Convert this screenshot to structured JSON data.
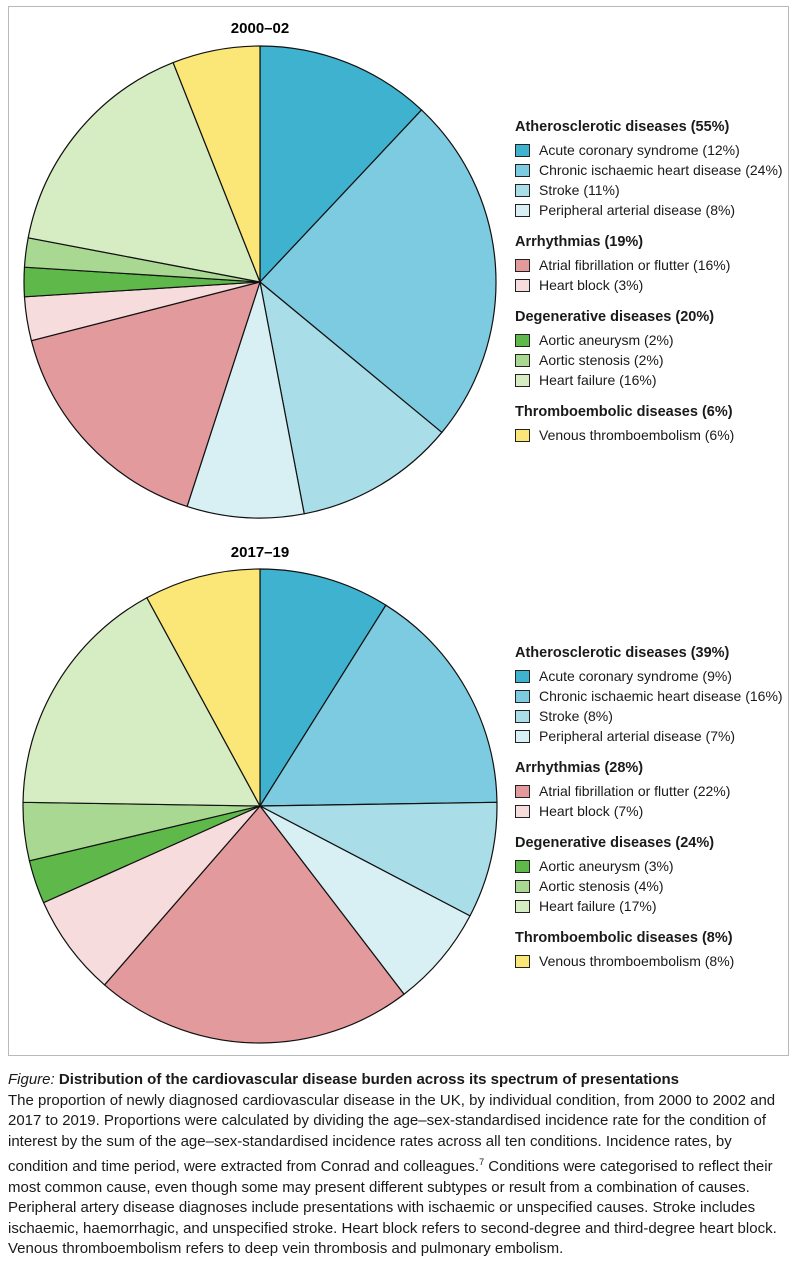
{
  "chart_data": [
    {
      "type": "pie",
      "title": "2000–02",
      "slices": [
        {
          "label": "Acute coronary syndrome",
          "value": 12,
          "color": "#3fb2cf"
        },
        {
          "label": "Chronic ischaemic heart disease",
          "value": 24,
          "color": "#7dcbe0"
        },
        {
          "label": "Stroke",
          "value": 11,
          "color": "#a9dde8"
        },
        {
          "label": "Peripheral arterial disease",
          "value": 8,
          "color": "#d8eff4"
        },
        {
          "label": "Atrial fibrillation or flutter",
          "value": 16,
          "color": "#e39a9c"
        },
        {
          "label": "Heart block",
          "value": 3,
          "color": "#f6dcdc"
        },
        {
          "label": "Aortic aneurysm",
          "value": 2,
          "color": "#5eb84a"
        },
        {
          "label": "Aortic stenosis",
          "value": 2,
          "color": "#a8d891"
        },
        {
          "label": "Heart failure",
          "value": 16,
          "color": "#d6ecc2"
        },
        {
          "label": "Venous thromboembolism",
          "value": 6,
          "color": "#fbe777"
        }
      ],
      "groups": [
        {
          "title": "Atherosclerotic diseases (55%)",
          "items": [
            {
              "text": "Acute coronary syndrome (12%)",
              "color": "#3fb2cf"
            },
            {
              "text": "Chronic ischaemic heart disease (24%)",
              "color": "#7dcbe0"
            },
            {
              "text": "Stroke (11%)",
              "color": "#a9dde8"
            },
            {
              "text": "Peripheral arterial disease (8%)",
              "color": "#d8eff4"
            }
          ]
        },
        {
          "title": "Arrhythmias (19%)",
          "items": [
            {
              "text": "Atrial fibrillation or flutter (16%)",
              "color": "#e39a9c"
            },
            {
              "text": "Heart block (3%)",
              "color": "#f6dcdc"
            }
          ]
        },
        {
          "title": "Degenerative diseases (20%)",
          "items": [
            {
              "text": "Aortic aneurysm (2%)",
              "color": "#5eb84a"
            },
            {
              "text": "Aortic stenosis (2%)",
              "color": "#a8d891"
            },
            {
              "text": "Heart failure (16%)",
              "color": "#d6ecc2"
            }
          ]
        },
        {
          "title": "Thromboembolic diseases (6%)",
          "items": [
            {
              "text": "Venous thromboembolism (6%)",
              "color": "#fbe777"
            }
          ]
        }
      ]
    },
    {
      "type": "pie",
      "title": "2017–19",
      "slices": [
        {
          "label": "Acute coronary syndrome",
          "value": 9,
          "color": "#3fb2cf"
        },
        {
          "label": "Chronic ischaemic heart disease",
          "value": 16,
          "color": "#7dcbe0"
        },
        {
          "label": "Stroke",
          "value": 8,
          "color": "#a9dde8"
        },
        {
          "label": "Peripheral arterial disease",
          "value": 7,
          "color": "#d8eff4"
        },
        {
          "label": "Atrial fibrillation or flutter",
          "value": 22,
          "color": "#e39a9c"
        },
        {
          "label": "Heart block",
          "value": 7,
          "color": "#f6dcdc"
        },
        {
          "label": "Aortic aneurysm",
          "value": 3,
          "color": "#5eb84a"
        },
        {
          "label": "Aortic stenosis",
          "value": 4,
          "color": "#a8d891"
        },
        {
          "label": "Heart failure",
          "value": 17,
          "color": "#d6ecc2"
        },
        {
          "label": "Venous thromboembolism",
          "value": 8,
          "color": "#fbe777"
        }
      ],
      "groups": [
        {
          "title": "Atherosclerotic diseases (39%)",
          "items": [
            {
              "text": "Acute coronary syndrome (9%)",
              "color": "#3fb2cf"
            },
            {
              "text": "Chronic ischaemic heart disease (16%)",
              "color": "#7dcbe0"
            },
            {
              "text": "Stroke (8%)",
              "color": "#a9dde8"
            },
            {
              "text": "Peripheral arterial disease (7%)",
              "color": "#d8eff4"
            }
          ]
        },
        {
          "title": "Arrhythmias (28%)",
          "items": [
            {
              "text": "Atrial fibrillation or flutter (22%)",
              "color": "#e39a9c"
            },
            {
              "text": "Heart block (7%)",
              "color": "#f6dcdc"
            }
          ]
        },
        {
          "title": "Degenerative diseases (24%)",
          "items": [
            {
              "text": "Aortic aneurysm (3%)",
              "color": "#5eb84a"
            },
            {
              "text": "Aortic stenosis (4%)",
              "color": "#a8d891"
            },
            {
              "text": "Heart failure (17%)",
              "color": "#d6ecc2"
            }
          ]
        },
        {
          "title": "Thromboembolic diseases (8%)",
          "items": [
            {
              "text": "Venous thromboembolism (8%)",
              "color": "#fbe777"
            }
          ]
        }
      ]
    }
  ],
  "caption": {
    "label": "Figure:",
    "title": " Distribution of the cardiovascular disease burden across its spectrum of presentations",
    "body_1": "The proportion of newly diagnosed cardiovascular disease in the UK, by individual condition, from 2000 to 2002 and 2017 to 2019. Proportions were calculated by dividing the age–sex-standardised incidence rate for the condition of interest by the sum of the age–sex-standardised incidence rates across all ten conditions. Incidence rates, by condition and time period, were extracted from Conrad and colleagues.",
    "ref": "7",
    "body_2": " Conditions were categorised to reflect their most common cause, even though some may present different subtypes or result from a combination of causes. Peripheral artery disease diagnoses include presentations with ischaemic or unspecified causes. Stroke includes ischaemic, haemorrhagic, and unspecified stroke. Heart block refers to second-degree and third-degree heart block. Venous thromboembolism refers to deep vein thrombosis and pulmonary embolism."
  }
}
